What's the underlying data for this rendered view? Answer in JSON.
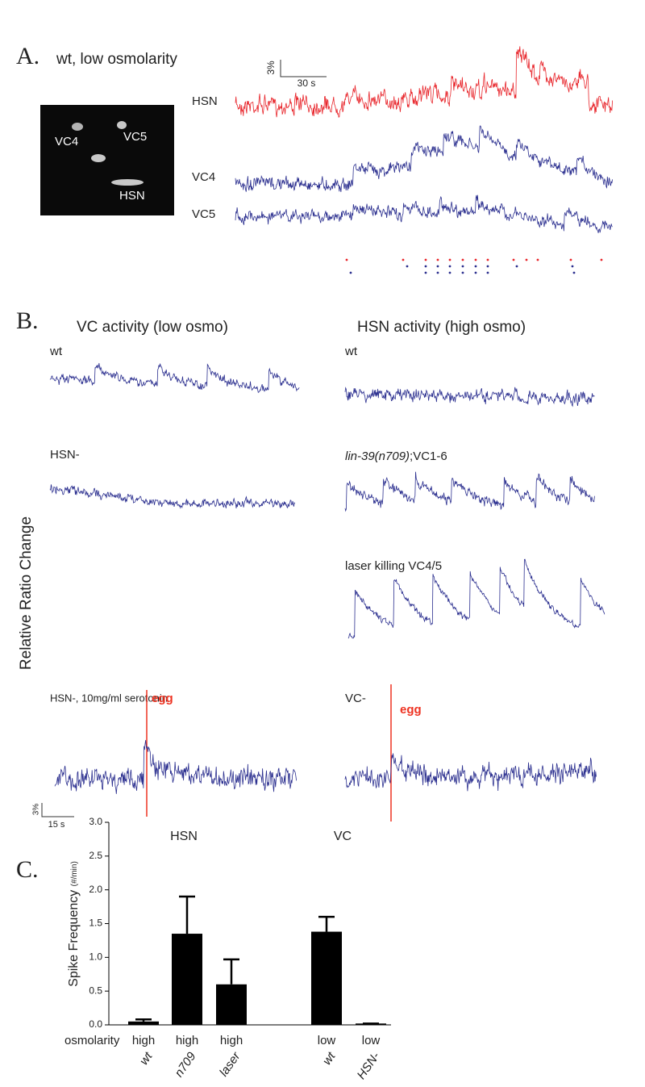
{
  "panel_a": {
    "label": "A.",
    "title": "wt, low osmolarity",
    "scale_y": "3%",
    "scale_x": "30 s",
    "image_labels": [
      "VC4",
      "VC5",
      "HSN"
    ],
    "trace_labels": [
      "HSN",
      "VC4",
      "VC5"
    ]
  },
  "panel_b": {
    "label": "B.",
    "left_title": "VC activity (low osmo)",
    "right_title": "HSN activity (high osmo)",
    "y_label": "Relative Ratio Change",
    "left_traces": [
      "wt",
      "HSN-",
      "HSN-, 10mg/ml serotonin"
    ],
    "right_traces": [
      "wt",
      "laser killing VC4/5",
      "VC-"
    ],
    "mutant_label": {
      "genotype": "lin-39(n709)",
      "suffix": ";VC1-6"
    },
    "egg": "egg",
    "scale_y": "3%",
    "scale_x": "15 s"
  },
  "panel_c": {
    "label": "C.",
    "groups": [
      "HSN",
      "VC"
    ],
    "row_label": "osmolarity"
  },
  "chart_data": {
    "type": "bar",
    "y_label": "Spike Frequency",
    "y_unit": "(#/min)",
    "categories": [
      "wt",
      "n709",
      "laser",
      "wt",
      "HSN-"
    ],
    "conditions": [
      "high",
      "high",
      "high",
      "low",
      "low"
    ],
    "values": [
      0.05,
      1.35,
      0.6,
      1.38,
      0.02
    ],
    "errors": [
      0.03,
      0.55,
      0.37,
      0.22,
      0
    ],
    "color": "#000000",
    "ylim": [
      0,
      3
    ],
    "yticks": [
      {
        "value": 0,
        "label": "0.0"
      },
      {
        "value": 0.5,
        "label": "0.5"
      },
      {
        "value": 1,
        "label": "1.0"
      },
      {
        "value": 1.5,
        "label": "1.5"
      },
      {
        "value": 2,
        "label": "2.0"
      },
      {
        "value": 2.5,
        "label": "2.5"
      },
      {
        "value": 3,
        "label": "3.0"
      }
    ]
  }
}
